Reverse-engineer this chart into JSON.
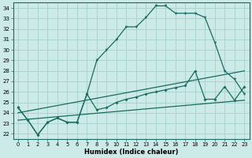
{
  "title": "",
  "xlabel": "Humidex (Indice chaleur)",
  "ylabel": "",
  "bg_color": "#cceae7",
  "grid_color": "#aad4d0",
  "line_color": "#1a6b60",
  "xlim": [
    -0.5,
    23.5
  ],
  "ylim": [
    21.5,
    34.5
  ],
  "xticks": [
    0,
    1,
    2,
    3,
    4,
    5,
    6,
    7,
    8,
    9,
    10,
    11,
    12,
    13,
    14,
    15,
    16,
    17,
    18,
    19,
    20,
    21,
    22,
    23
  ],
  "yticks": [
    22,
    23,
    24,
    25,
    26,
    27,
    28,
    29,
    30,
    31,
    32,
    33,
    34
  ],
  "curve1": [
    [
      0,
      24.5
    ],
    [
      1,
      23.3
    ],
    [
      2,
      21.9
    ],
    [
      3,
      23.1
    ],
    [
      4,
      23.5
    ],
    [
      5,
      23.1
    ],
    [
      6,
      23.1
    ],
    [
      7,
      25.8
    ],
    [
      8,
      29.0
    ],
    [
      9,
      30.0
    ],
    [
      10,
      31.0
    ],
    [
      11,
      32.2
    ],
    [
      12,
      32.2
    ],
    [
      13,
      33.1
    ],
    [
      14,
      34.2
    ],
    [
      15,
      34.2
    ],
    [
      16,
      33.5
    ],
    [
      17,
      33.5
    ],
    [
      18,
      33.5
    ],
    [
      19,
      33.1
    ],
    [
      20,
      30.7
    ],
    [
      21,
      28.0
    ],
    [
      22,
      27.2
    ],
    [
      23,
      25.8
    ]
  ],
  "curve2": [
    [
      0,
      24.5
    ],
    [
      1,
      23.3
    ],
    [
      2,
      21.9
    ],
    [
      3,
      23.1
    ],
    [
      4,
      23.5
    ],
    [
      5,
      23.1
    ],
    [
      6,
      23.1
    ],
    [
      7,
      25.8
    ],
    [
      8,
      24.3
    ],
    [
      9,
      24.5
    ],
    [
      10,
      25.0
    ],
    [
      11,
      25.3
    ],
    [
      12,
      25.5
    ],
    [
      13,
      25.8
    ],
    [
      14,
      26.0
    ],
    [
      15,
      26.2
    ],
    [
      16,
      26.4
    ],
    [
      17,
      26.6
    ],
    [
      18,
      28.0
    ],
    [
      19,
      25.3
    ],
    [
      20,
      25.3
    ],
    [
      21,
      26.5
    ],
    [
      22,
      25.2
    ],
    [
      23,
      26.5
    ]
  ],
  "line_upper": [
    [
      0,
      24.0
    ],
    [
      23,
      28.0
    ]
  ],
  "line_lower": [
    [
      0,
      23.3
    ],
    [
      23,
      25.2
    ]
  ]
}
